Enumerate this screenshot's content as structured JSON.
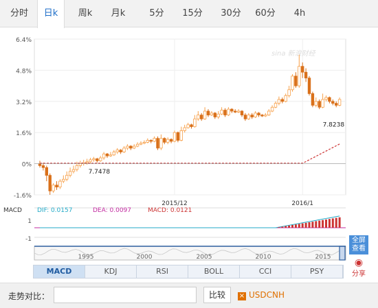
{
  "tabs": [
    {
      "label": "分时"
    },
    {
      "label": "日k",
      "active": true
    },
    {
      "label": "周k"
    },
    {
      "label": "月k"
    },
    {
      "label": "5分"
    },
    {
      "label": "15分"
    },
    {
      "label": "30分"
    },
    {
      "label": "60分"
    },
    {
      "label": "4h"
    }
  ],
  "watermark": "sina 新浪财经",
  "chart_data": {
    "type": "candlestick",
    "y_ticks": [
      "6.4%",
      "4.8%",
      "3.2%",
      "1.6%",
      "0%",
      "-1.6%"
    ],
    "y_tick_values": [
      6.4,
      4.8,
      3.2,
      1.6,
      0,
      -1.6
    ],
    "ylim": [
      -1.6,
      6.4
    ],
    "x_labels": [
      "2015/12",
      "2016/1"
    ],
    "x_label_index": [
      40,
      78
    ],
    "price_low_label": "7.7478",
    "price_high_label": "7.8238",
    "up_color": "#f7a04a",
    "down_color": "#d9701a",
    "line_color": "#cc3333",
    "candles": [
      [
        0,
        -0.1,
        0.15,
        -0.2
      ],
      [
        -0.1,
        -0.2,
        0.05,
        -0.35
      ],
      [
        -0.2,
        -0.6,
        -0.1,
        -0.9
      ],
      [
        -0.6,
        -1.4,
        -0.5,
        -1.6
      ],
      [
        -1.4,
        -1.1,
        -1.0,
        -1.5
      ],
      [
        -1.1,
        -1.2,
        -0.9,
        -1.35
      ],
      [
        -1.2,
        -0.9,
        -0.8,
        -1.3
      ],
      [
        -0.9,
        -0.8,
        -0.6,
        -1.0
      ],
      [
        -0.8,
        -0.6,
        -0.4,
        -0.9
      ],
      [
        -0.6,
        -0.4,
        -0.2,
        -0.7
      ],
      [
        -0.4,
        -0.3,
        -0.1,
        -0.5
      ],
      [
        -0.3,
        -0.1,
        0.1,
        -0.4
      ],
      [
        -0.1,
        0.0,
        0.15,
        -0.2
      ],
      [
        0.0,
        0.05,
        0.2,
        -0.1
      ],
      [
        0.05,
        0.1,
        0.25,
        -0.05
      ],
      [
        0.1,
        0.2,
        0.3,
        0.0
      ],
      [
        0.2,
        0.25,
        0.35,
        0.1
      ],
      [
        0.25,
        0.15,
        0.3,
        0.05
      ],
      [
        0.15,
        0.3,
        0.4,
        0.1
      ],
      [
        0.3,
        0.5,
        0.6,
        0.2
      ],
      [
        0.5,
        0.4,
        0.55,
        0.3
      ],
      [
        0.4,
        0.45,
        0.6,
        0.35
      ],
      [
        0.45,
        0.6,
        0.7,
        0.4
      ],
      [
        0.6,
        0.7,
        0.8,
        0.5
      ],
      [
        0.7,
        0.6,
        0.75,
        0.5
      ],
      [
        0.6,
        0.8,
        0.9,
        0.55
      ],
      [
        0.8,
        0.9,
        1.0,
        0.7
      ],
      [
        0.9,
        0.8,
        0.95,
        0.7
      ],
      [
        0.8,
        0.9,
        1.0,
        0.75
      ],
      [
        0.9,
        1.0,
        1.1,
        0.85
      ],
      [
        1.0,
        1.05,
        1.15,
        0.95
      ],
      [
        1.05,
        1.1,
        1.2,
        1.0
      ],
      [
        1.1,
        1.2,
        1.3,
        1.05
      ],
      [
        1.2,
        1.15,
        1.25,
        1.05
      ],
      [
        1.15,
        1.3,
        1.4,
        1.1
      ],
      [
        1.3,
        0.8,
        1.4,
        0.7
      ],
      [
        0.8,
        1.3,
        1.5,
        0.7
      ],
      [
        1.3,
        1.1,
        1.35,
        1.0
      ],
      [
        1.1,
        1.25,
        1.35,
        1.0
      ],
      [
        1.25,
        1.15,
        1.3,
        1.05
      ],
      [
        1.15,
        1.6,
        1.7,
        1.1
      ],
      [
        1.6,
        1.2,
        1.65,
        1.1
      ],
      [
        1.2,
        1.7,
        1.9,
        1.15
      ],
      [
        1.7,
        1.85,
        2.0,
        1.6
      ],
      [
        1.85,
        2.0,
        2.1,
        1.8
      ],
      [
        2.0,
        1.9,
        2.05,
        1.8
      ],
      [
        1.9,
        2.3,
        2.5,
        1.85
      ],
      [
        2.3,
        2.5,
        2.7,
        2.2
      ],
      [
        2.5,
        2.3,
        2.6,
        2.2
      ],
      [
        2.3,
        2.7,
        2.9,
        2.25
      ],
      [
        2.7,
        2.5,
        2.8,
        2.4
      ],
      [
        2.5,
        2.6,
        2.7,
        2.45
      ],
      [
        2.6,
        2.4,
        2.65,
        2.3
      ],
      [
        2.4,
        2.55,
        2.7,
        2.3
      ],
      [
        2.55,
        2.75,
        2.9,
        2.5
      ],
      [
        2.75,
        2.5,
        2.85,
        2.4
      ],
      [
        2.5,
        2.8,
        2.9,
        2.45
      ],
      [
        2.8,
        2.7,
        2.85,
        2.6
      ],
      [
        2.7,
        2.65,
        2.8,
        2.6
      ],
      [
        2.65,
        2.7,
        2.8,
        2.6
      ],
      [
        2.7,
        2.5,
        2.75,
        2.4
      ],
      [
        2.5,
        2.3,
        2.6,
        2.2
      ],
      [
        2.3,
        2.5,
        2.6,
        2.25
      ],
      [
        2.5,
        2.4,
        2.6,
        2.3
      ],
      [
        2.4,
        2.6,
        2.7,
        2.35
      ],
      [
        2.6,
        2.5,
        2.65,
        2.4
      ],
      [
        2.5,
        2.45,
        2.55,
        2.4
      ],
      [
        2.45,
        2.5,
        2.6,
        2.4
      ],
      [
        2.5,
        2.7,
        2.8,
        2.45
      ],
      [
        2.7,
        2.9,
        3.0,
        2.65
      ],
      [
        2.9,
        3.1,
        3.2,
        2.85
      ],
      [
        3.1,
        3.3,
        3.45,
        3.0
      ],
      [
        3.3,
        3.2,
        3.4,
        3.1
      ],
      [
        3.2,
        3.5,
        3.6,
        3.15
      ],
      [
        3.5,
        3.8,
        4.0,
        3.4
      ],
      [
        3.8,
        4.5,
        4.6,
        3.7
      ],
      [
        4.5,
        4.0,
        4.7,
        3.9
      ],
      [
        4.0,
        5.0,
        5.6,
        3.9
      ],
      [
        5.0,
        4.7,
        5.2,
        4.4
      ],
      [
        4.7,
        4.4,
        4.9,
        4.2
      ],
      [
        4.4,
        3.6,
        4.5,
        3.5
      ],
      [
        3.6,
        3.0,
        3.7,
        2.9
      ],
      [
        3.0,
        3.2,
        3.4,
        2.9
      ],
      [
        3.2,
        2.9,
        3.3,
        2.8
      ],
      [
        2.9,
        3.3,
        3.6,
        2.85
      ],
      [
        3.3,
        3.4,
        3.5,
        3.2
      ],
      [
        3.4,
        3.2,
        3.45,
        3.1
      ],
      [
        3.2,
        3.1,
        3.3,
        3.0
      ],
      [
        3.1,
        3.0,
        3.2,
        2.9
      ],
      [
        3.0,
        3.3,
        3.4,
        2.95
      ]
    ],
    "macd": {
      "dif_label": "DIF: 0.0157",
      "dea_label": "DEA: 0.0097",
      "macd_label": "MACD: 0.0121",
      "dif_color": "#21a9c7",
      "dea_color": "#c22aa0",
      "macd_color": "#cc3333",
      "y_ticks": [
        "1",
        "-1"
      ]
    },
    "navigator": {
      "x_labels": [
        "1995",
        "2000",
        "2005",
        "2010",
        "2015"
      ]
    }
  },
  "side_buttons": {
    "fullscreen": "全屏查看",
    "share": "分享"
  },
  "indicators": [
    {
      "label": "MACD",
      "active": true
    },
    {
      "label": "KDJ"
    },
    {
      "label": "RSI"
    },
    {
      "label": "BOLL"
    },
    {
      "label": "CCI"
    },
    {
      "label": "PSY"
    }
  ],
  "compare": {
    "label": "走势对比：",
    "button": "比较",
    "symbol": "USDCNH",
    "remove": "×"
  }
}
